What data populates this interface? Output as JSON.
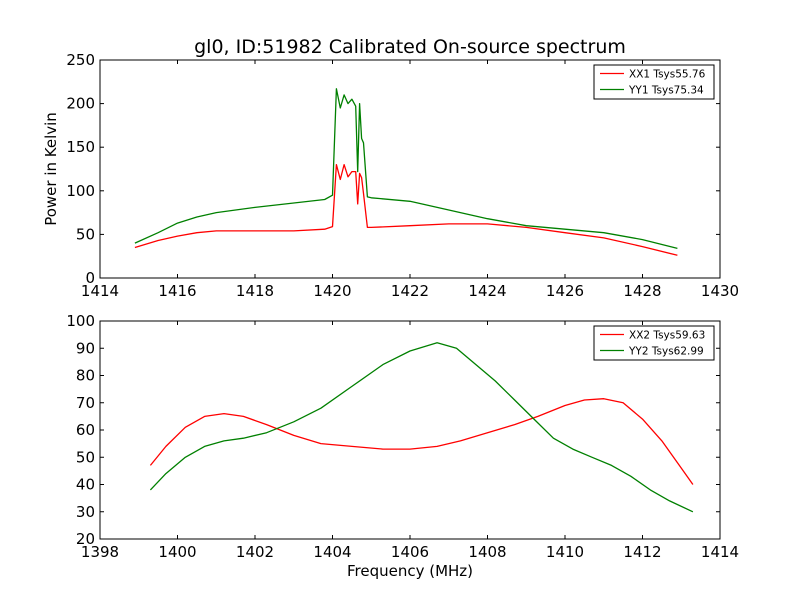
{
  "figure": {
    "title": "gl0, ID:51982 Calibrated On-source spectrum",
    "xlabel": "Frequency (MHz)",
    "background": "#ffffff"
  },
  "chart_data": [
    {
      "type": "line",
      "panel": "top",
      "title": "gl0, ID:51982 Calibrated On-source spectrum",
      "xlabel": "",
      "ylabel": "Power in Kelvin",
      "xlim": [
        1414,
        1430
      ],
      "ylim": [
        0,
        250
      ],
      "xticks": [
        1414,
        1416,
        1418,
        1420,
        1422,
        1424,
        1426,
        1428,
        1430
      ],
      "yticks": [
        0,
        50,
        100,
        150,
        200,
        250
      ],
      "grid": false,
      "legend_position": "top-right",
      "series": [
        {
          "name": "XX1 Tsys55.76",
          "color": "#ff0000",
          "x": [
            1414.9,
            1415.5,
            1416.0,
            1416.5,
            1417.0,
            1418.0,
            1419.0,
            1419.8,
            1420.0,
            1420.1,
            1420.2,
            1420.3,
            1420.4,
            1420.5,
            1420.6,
            1420.65,
            1420.7,
            1420.75,
            1420.8,
            1420.9,
            1421.0,
            1422.0,
            1423.0,
            1424.0,
            1425.0,
            1426.0,
            1427.0,
            1428.0,
            1428.9
          ],
          "values": [
            35,
            43,
            48,
            52,
            54,
            54,
            54,
            56,
            59,
            130,
            113,
            130,
            116,
            122,
            122,
            85,
            120,
            115,
            97,
            58,
            58,
            60,
            62,
            62,
            58,
            52,
            46,
            36,
            26
          ]
        },
        {
          "name": "YY1 Tsys75.34",
          "color": "#008000",
          "x": [
            1414.9,
            1415.5,
            1416.0,
            1416.5,
            1417.0,
            1418.0,
            1419.0,
            1419.8,
            1420.0,
            1420.1,
            1420.2,
            1420.3,
            1420.4,
            1420.5,
            1420.6,
            1420.65,
            1420.7,
            1420.75,
            1420.8,
            1420.9,
            1421.0,
            1422.0,
            1423.0,
            1424.0,
            1425.0,
            1426.0,
            1427.0,
            1428.0,
            1428.9
          ],
          "values": [
            40,
            52,
            63,
            70,
            75,
            81,
            86,
            90,
            95,
            217,
            195,
            210,
            200,
            205,
            197,
            122,
            200,
            160,
            155,
            93,
            92,
            88,
            78,
            68,
            60,
            56,
            52,
            44,
            34
          ]
        }
      ]
    },
    {
      "type": "line",
      "panel": "bottom",
      "title": "",
      "xlabel": "Frequency (MHz)",
      "ylabel": "",
      "xlim": [
        1398,
        1414
      ],
      "ylim": [
        20,
        100
      ],
      "xticks": [
        1398,
        1400,
        1402,
        1404,
        1406,
        1408,
        1410,
        1412,
        1414
      ],
      "yticks": [
        20,
        30,
        40,
        50,
        60,
        70,
        80,
        90,
        100
      ],
      "grid": false,
      "legend_position": "top-right",
      "series": [
        {
          "name": "XX2 Tsys59.63",
          "color": "#ff0000",
          "x": [
            1399.3,
            1399.7,
            1400.2,
            1400.7,
            1401.2,
            1401.7,
            1402.3,
            1403.0,
            1403.7,
            1404.5,
            1405.3,
            1406.0,
            1406.7,
            1407.3,
            1408.0,
            1408.7,
            1409.3,
            1410.0,
            1410.5,
            1411.0,
            1411.5,
            1412.0,
            1412.5,
            1413.0,
            1413.3
          ],
          "values": [
            47,
            54,
            61,
            65,
            66,
            65,
            62,
            58,
            55,
            54,
            53,
            53,
            54,
            56,
            59,
            62,
            65,
            69,
            71,
            71.5,
            70,
            64,
            56,
            46,
            40
          ]
        },
        {
          "name": "YY2 Tsys62.99",
          "color": "#008000",
          "x": [
            1399.3,
            1399.7,
            1400.2,
            1400.7,
            1401.2,
            1401.7,
            1402.3,
            1403.0,
            1403.7,
            1404.5,
            1405.3,
            1406.0,
            1406.7,
            1407.2,
            1407.7,
            1408.2,
            1408.7,
            1409.2,
            1409.7,
            1410.2,
            1410.7,
            1411.2,
            1411.7,
            1412.2,
            1412.7,
            1413.3
          ],
          "values": [
            38,
            44,
            50,
            54,
            56,
            57,
            59,
            63,
            68,
            76,
            84,
            89,
            92,
            90,
            84,
            78,
            71,
            64,
            57,
            53,
            50,
            47,
            43,
            38,
            34,
            30
          ]
        }
      ]
    }
  ]
}
